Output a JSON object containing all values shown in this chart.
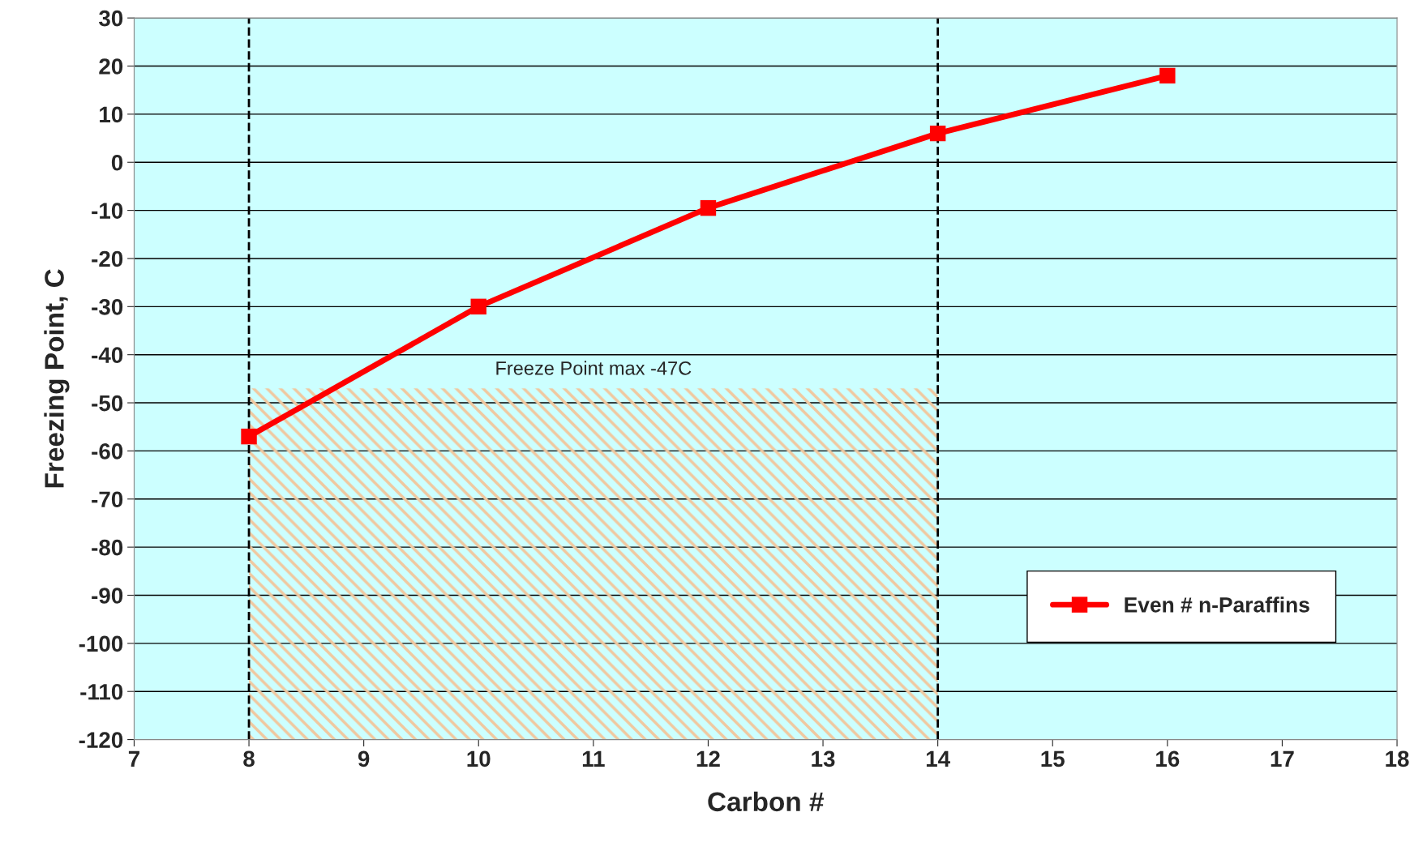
{
  "chart_data": {
    "type": "line",
    "xlabel": "Carbon #",
    "ylabel": "Freezing Point, C",
    "x": [
      8,
      10,
      12,
      14,
      16
    ],
    "series": [
      {
        "name": "Even # n-Paraffins",
        "color": "#ff0000",
        "values": [
          -57,
          -30,
          -9.5,
          6,
          18
        ]
      }
    ],
    "xlim": [
      7,
      18
    ],
    "xticks": [
      7,
      8,
      9,
      10,
      11,
      12,
      13,
      14,
      15,
      16,
      17,
      18
    ],
    "ylim": [
      -120,
      30
    ],
    "yticks": [
      -120,
      -110,
      -100,
      -90,
      -80,
      -70,
      -60,
      -50,
      -40,
      -30,
      -20,
      -10,
      0,
      10,
      20,
      30
    ],
    "grid": "y",
    "legend": "lower right",
    "marker": "square",
    "line_style": "solid",
    "ref_lines": [
      {
        "axis": "x",
        "value": 8,
        "color": "#000000",
        "line_style": "dashed"
      },
      {
        "axis": "x",
        "value": 14,
        "color": "#000000",
        "line_style": "dashed"
      }
    ],
    "bands": [
      {
        "axis": "y",
        "from": -120,
        "to": -47,
        "label": "Freeze Point max -47C",
        "color": "#f0c8a0"
      }
    ]
  }
}
